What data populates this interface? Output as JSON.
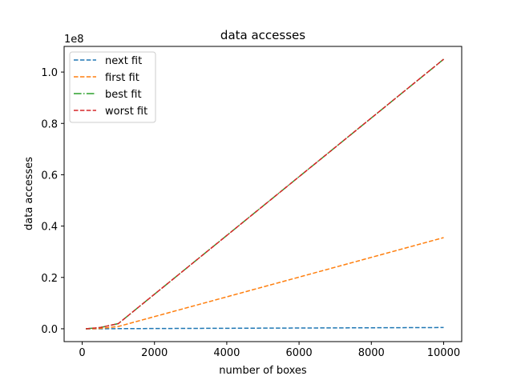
{
  "chart_data": {
    "type": "line",
    "title": "data accesses",
    "xlabel": "number of boxes",
    "ylabel": "data accesses",
    "y_offset_text": "1e8",
    "y_scale": 100000000,
    "xlim": [
      -500,
      10500
    ],
    "ylim": [
      -5000000,
      110000000
    ],
    "x_ticks": [
      0,
      2000,
      4000,
      6000,
      8000,
      10000
    ],
    "x_tick_labels": [
      "0",
      "2000",
      "4000",
      "6000",
      "8000",
      "10000"
    ],
    "y_ticks": [
      0,
      20000000,
      40000000,
      60000000,
      80000000,
      100000000
    ],
    "y_tick_labels": [
      "0.0",
      "0.2",
      "0.4",
      "0.6",
      "0.8",
      "1.0"
    ],
    "grid": false,
    "legend_position": "top-left",
    "x": [
      100,
      500,
      1000,
      10000
    ],
    "series": [
      {
        "name": "next fit",
        "values": [
          0,
          2000,
          50000,
          500000
        ],
        "color": "#1f77b4",
        "dash": "5.5,2.4"
      },
      {
        "name": "first fit",
        "values": [
          0,
          100000,
          900000,
          35500000
        ],
        "color": "#ff7f0e",
        "dash": "5.5,2.4"
      },
      {
        "name": "best fit",
        "values": [
          0,
          500000,
          2000000,
          105000000
        ],
        "color": "#2ca02c",
        "dash": "9.6,2.4,1.5,2.4"
      },
      {
        "name": "worst fit",
        "values": [
          0,
          500000,
          2000000,
          105000000
        ],
        "color": "#d62728",
        "dash": "5.5,2.4"
      }
    ]
  }
}
